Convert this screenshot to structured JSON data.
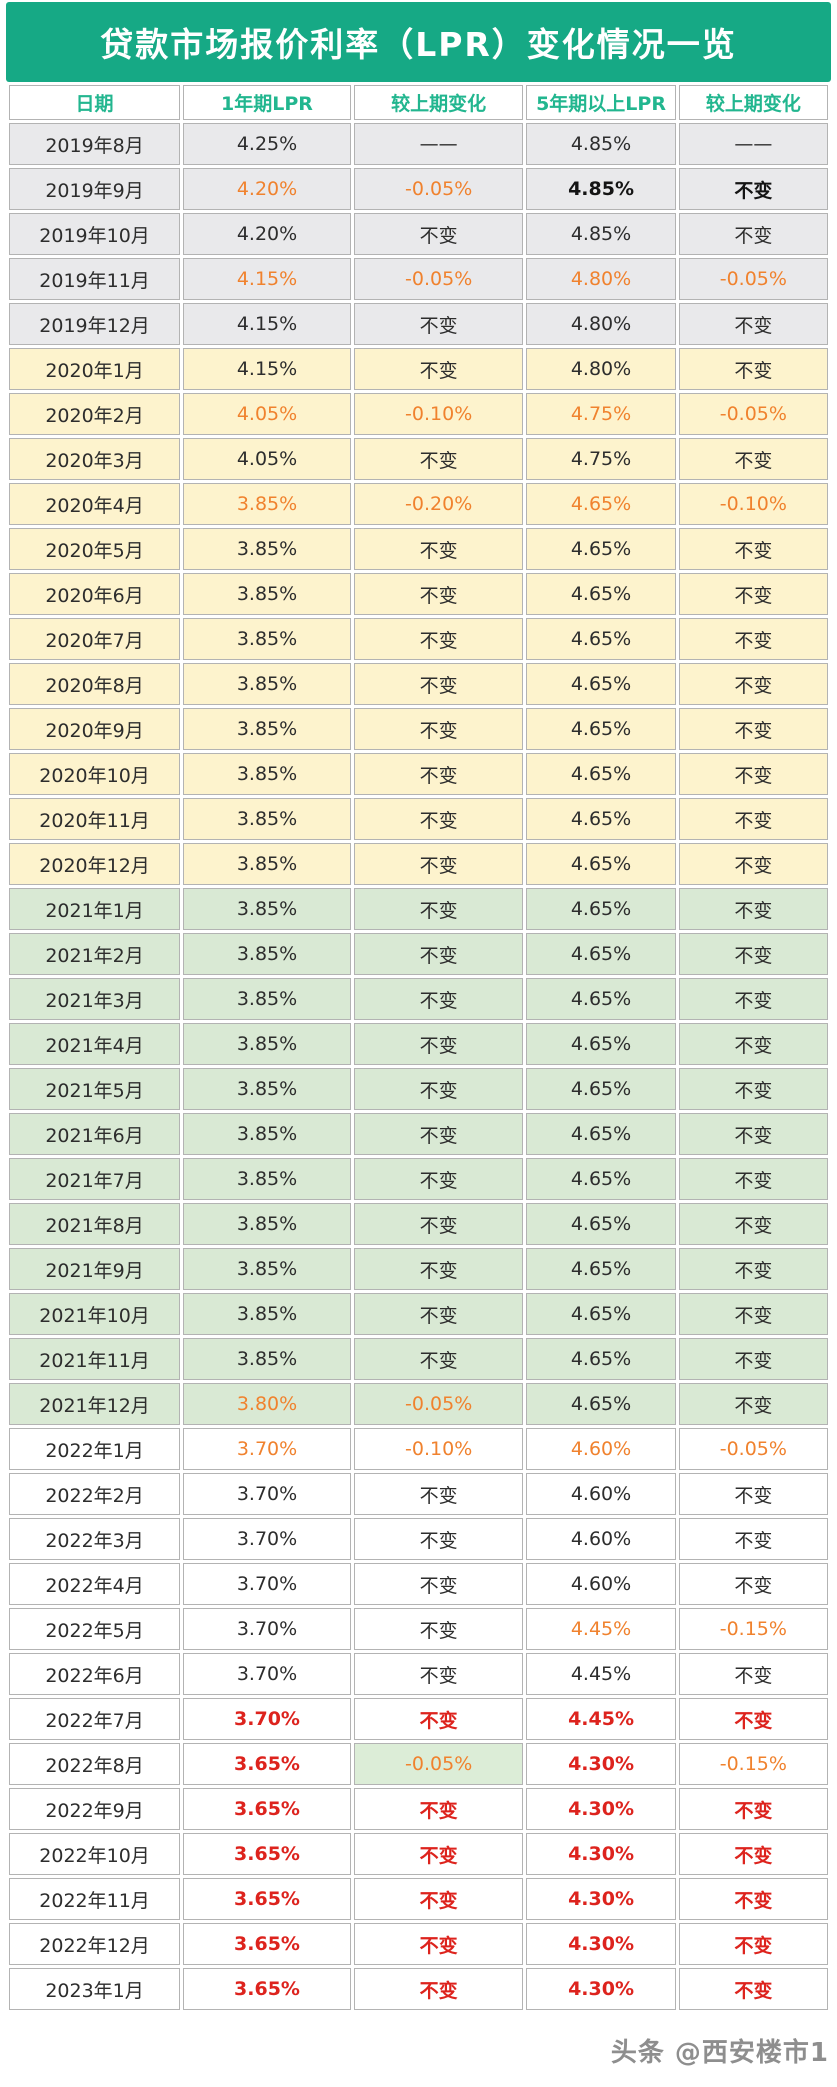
{
  "title": "贷款市场报价利率（LPR）变化情况一览",
  "header": {
    "columns": [
      "日期",
      "1年期LPR",
      "较上期变化",
      "5年期以上LPR",
      "较上期变化"
    ]
  },
  "watermark": "头条 @西安楼市1",
  "colors": {
    "title_bg": "#16a985",
    "title_text": "#ffffff",
    "column_header_text": "#22b68f",
    "row_grey": "#e9e9eb",
    "row_yellow": "#fdf3cd",
    "row_green": "#d9e9d4",
    "row_white": "#ffffff",
    "highlight_cell_green": "#dcedd7",
    "text_black": "#2d2d2d",
    "text_orange": "#f0822e",
    "text_red": "#dd231d",
    "cell_border": "#b3b3b3",
    "watermark_text": "#8e8e8e"
  },
  "legend": {
    "color_codes": {
      "k": "black-normal",
      "b": "black-bold",
      "o": "orange",
      "r": "red-bold"
    }
  },
  "rows": [
    {
      "date": "2019年8月",
      "bg": "grey",
      "cells": [
        [
          "4.25%",
          "k"
        ],
        [
          "——",
          "k"
        ],
        [
          "4.85%",
          "k"
        ],
        [
          "——",
          "k"
        ]
      ]
    },
    {
      "date": "2019年9月",
      "bg": "grey",
      "cells": [
        [
          "4.20%",
          "o"
        ],
        [
          "-0.05%",
          "o"
        ],
        [
          "4.85%",
          "b"
        ],
        [
          "不变",
          "b"
        ]
      ]
    },
    {
      "date": "2019年10月",
      "bg": "grey",
      "cells": [
        [
          "4.20%",
          "k"
        ],
        [
          "不变",
          "k"
        ],
        [
          "4.85%",
          "k"
        ],
        [
          "不变",
          "k"
        ]
      ]
    },
    {
      "date": "2019年11月",
      "bg": "grey",
      "cells": [
        [
          "4.15%",
          "o"
        ],
        [
          "-0.05%",
          "o"
        ],
        [
          "4.80%",
          "o"
        ],
        [
          "-0.05%",
          "o"
        ]
      ]
    },
    {
      "date": "2019年12月",
      "bg": "grey",
      "cells": [
        [
          "4.15%",
          "k"
        ],
        [
          "不变",
          "k"
        ],
        [
          "4.80%",
          "k"
        ],
        [
          "不变",
          "k"
        ]
      ]
    },
    {
      "date": "2020年1月",
      "bg": "yellow",
      "cells": [
        [
          "4.15%",
          "k"
        ],
        [
          "不变",
          "k"
        ],
        [
          "4.80%",
          "k"
        ],
        [
          "不变",
          "k"
        ]
      ]
    },
    {
      "date": "2020年2月",
      "bg": "yellow",
      "cells": [
        [
          "4.05%",
          "o"
        ],
        [
          "-0.10%",
          "o"
        ],
        [
          "4.75%",
          "o"
        ],
        [
          "-0.05%",
          "o"
        ]
      ]
    },
    {
      "date": "2020年3月",
      "bg": "yellow",
      "cells": [
        [
          "4.05%",
          "k"
        ],
        [
          "不变",
          "k"
        ],
        [
          "4.75%",
          "k"
        ],
        [
          "不变",
          "k"
        ]
      ]
    },
    {
      "date": "2020年4月",
      "bg": "yellow",
      "cells": [
        [
          "3.85%",
          "o"
        ],
        [
          "-0.20%",
          "o"
        ],
        [
          "4.65%",
          "o"
        ],
        [
          "-0.10%",
          "o"
        ]
      ]
    },
    {
      "date": "2020年5月",
      "bg": "yellow",
      "cells": [
        [
          "3.85%",
          "k"
        ],
        [
          "不变",
          "k"
        ],
        [
          "4.65%",
          "k"
        ],
        [
          "不变",
          "k"
        ]
      ]
    },
    {
      "date": "2020年6月",
      "bg": "yellow",
      "cells": [
        [
          "3.85%",
          "k"
        ],
        [
          "不变",
          "k"
        ],
        [
          "4.65%",
          "k"
        ],
        [
          "不变",
          "k"
        ]
      ]
    },
    {
      "date": "2020年7月",
      "bg": "yellow",
      "cells": [
        [
          "3.85%",
          "k"
        ],
        [
          "不变",
          "k"
        ],
        [
          "4.65%",
          "k"
        ],
        [
          "不变",
          "k"
        ]
      ]
    },
    {
      "date": "2020年8月",
      "bg": "yellow",
      "cells": [
        [
          "3.85%",
          "k"
        ],
        [
          "不变",
          "k"
        ],
        [
          "4.65%",
          "k"
        ],
        [
          "不变",
          "k"
        ]
      ]
    },
    {
      "date": "2020年9月",
      "bg": "yellow",
      "cells": [
        [
          "3.85%",
          "k"
        ],
        [
          "不变",
          "k"
        ],
        [
          "4.65%",
          "k"
        ],
        [
          "不变",
          "k"
        ]
      ]
    },
    {
      "date": "2020年10月",
      "bg": "yellow",
      "cells": [
        [
          "3.85%",
          "k"
        ],
        [
          "不变",
          "k"
        ],
        [
          "4.65%",
          "k"
        ],
        [
          "不变",
          "k"
        ]
      ]
    },
    {
      "date": "2020年11月",
      "bg": "yellow",
      "cells": [
        [
          "3.85%",
          "k"
        ],
        [
          "不变",
          "k"
        ],
        [
          "4.65%",
          "k"
        ],
        [
          "不变",
          "k"
        ]
      ]
    },
    {
      "date": "2020年12月",
      "bg": "yellow",
      "cells": [
        [
          "3.85%",
          "k"
        ],
        [
          "不变",
          "k"
        ],
        [
          "4.65%",
          "k"
        ],
        [
          "不变",
          "k"
        ]
      ]
    },
    {
      "date": "2021年1月",
      "bg": "green",
      "cells": [
        [
          "3.85%",
          "k"
        ],
        [
          "不变",
          "k"
        ],
        [
          "4.65%",
          "k"
        ],
        [
          "不变",
          "k"
        ]
      ]
    },
    {
      "date": "2021年2月",
      "bg": "green",
      "cells": [
        [
          "3.85%",
          "k"
        ],
        [
          "不变",
          "k"
        ],
        [
          "4.65%",
          "k"
        ],
        [
          "不变",
          "k"
        ]
      ]
    },
    {
      "date": "2021年3月",
      "bg": "green",
      "cells": [
        [
          "3.85%",
          "k"
        ],
        [
          "不变",
          "k"
        ],
        [
          "4.65%",
          "k"
        ],
        [
          "不变",
          "k"
        ]
      ]
    },
    {
      "date": "2021年4月",
      "bg": "green",
      "cells": [
        [
          "3.85%",
          "k"
        ],
        [
          "不变",
          "k"
        ],
        [
          "4.65%",
          "k"
        ],
        [
          "不变",
          "k"
        ]
      ]
    },
    {
      "date": "2021年5月",
      "bg": "green",
      "cells": [
        [
          "3.85%",
          "k"
        ],
        [
          "不变",
          "k"
        ],
        [
          "4.65%",
          "k"
        ],
        [
          "不变",
          "k"
        ]
      ]
    },
    {
      "date": "2021年6月",
      "bg": "green",
      "cells": [
        [
          "3.85%",
          "k"
        ],
        [
          "不变",
          "k"
        ],
        [
          "4.65%",
          "k"
        ],
        [
          "不变",
          "k"
        ]
      ]
    },
    {
      "date": "2021年7月",
      "bg": "green",
      "cells": [
        [
          "3.85%",
          "k"
        ],
        [
          "不变",
          "k"
        ],
        [
          "4.65%",
          "k"
        ],
        [
          "不变",
          "k"
        ]
      ]
    },
    {
      "date": "2021年8月",
      "bg": "green",
      "cells": [
        [
          "3.85%",
          "k"
        ],
        [
          "不变",
          "k"
        ],
        [
          "4.65%",
          "k"
        ],
        [
          "不变",
          "k"
        ]
      ]
    },
    {
      "date": "2021年9月",
      "bg": "green",
      "cells": [
        [
          "3.85%",
          "k"
        ],
        [
          "不变",
          "k"
        ],
        [
          "4.65%",
          "k"
        ],
        [
          "不变",
          "k"
        ]
      ]
    },
    {
      "date": "2021年10月",
      "bg": "green",
      "cells": [
        [
          "3.85%",
          "k"
        ],
        [
          "不变",
          "k"
        ],
        [
          "4.65%",
          "k"
        ],
        [
          "不变",
          "k"
        ]
      ]
    },
    {
      "date": "2021年11月",
      "bg": "green",
      "cells": [
        [
          "3.85%",
          "k"
        ],
        [
          "不变",
          "k"
        ],
        [
          "4.65%",
          "k"
        ],
        [
          "不变",
          "k"
        ]
      ]
    },
    {
      "date": "2021年12月",
      "bg": "green",
      "cells": [
        [
          "3.80%",
          "o"
        ],
        [
          "-0.05%",
          "o"
        ],
        [
          "4.65%",
          "k"
        ],
        [
          "不变",
          "k"
        ]
      ]
    },
    {
      "date": "2022年1月",
      "bg": "white",
      "cells": [
        [
          "3.70%",
          "o"
        ],
        [
          "-0.10%",
          "o"
        ],
        [
          "4.60%",
          "o"
        ],
        [
          "-0.05%",
          "o"
        ]
      ]
    },
    {
      "date": "2022年2月",
      "bg": "white",
      "cells": [
        [
          "3.70%",
          "k"
        ],
        [
          "不变",
          "k"
        ],
        [
          "4.60%",
          "k"
        ],
        [
          "不变",
          "k"
        ]
      ]
    },
    {
      "date": "2022年3月",
      "bg": "white",
      "cells": [
        [
          "3.70%",
          "k"
        ],
        [
          "不变",
          "k"
        ],
        [
          "4.60%",
          "k"
        ],
        [
          "不变",
          "k"
        ]
      ]
    },
    {
      "date": "2022年4月",
      "bg": "white",
      "cells": [
        [
          "3.70%",
          "k"
        ],
        [
          "不变",
          "k"
        ],
        [
          "4.60%",
          "k"
        ],
        [
          "不变",
          "k"
        ]
      ]
    },
    {
      "date": "2022年5月",
      "bg": "white",
      "cells": [
        [
          "3.70%",
          "k"
        ],
        [
          "不变",
          "k"
        ],
        [
          "4.45%",
          "o"
        ],
        [
          "-0.15%",
          "o"
        ]
      ]
    },
    {
      "date": "2022年6月",
      "bg": "white",
      "cells": [
        [
          "3.70%",
          "k"
        ],
        [
          "不变",
          "k"
        ],
        [
          "4.45%",
          "k"
        ],
        [
          "不变",
          "k"
        ]
      ]
    },
    {
      "date": "2022年7月",
      "bg": "white",
      "cells": [
        [
          "3.70%",
          "r"
        ],
        [
          "不变",
          "r"
        ],
        [
          "4.45%",
          "r"
        ],
        [
          "不变",
          "r"
        ]
      ]
    },
    {
      "date": "2022年8月",
      "bg": "white",
      "cells": [
        [
          "3.65%",
          "r"
        ],
        [
          "-0.05%",
          "o",
          "green"
        ],
        [
          "4.30%",
          "r"
        ],
        [
          "-0.15%",
          "o"
        ]
      ]
    },
    {
      "date": "2022年9月",
      "bg": "white",
      "cells": [
        [
          "3.65%",
          "r"
        ],
        [
          "不变",
          "r"
        ],
        [
          "4.30%",
          "r"
        ],
        [
          "不变",
          "r"
        ]
      ]
    },
    {
      "date": "2022年10月",
      "bg": "white",
      "cells": [
        [
          "3.65%",
          "r"
        ],
        [
          "不变",
          "r"
        ],
        [
          "4.30%",
          "r"
        ],
        [
          "不变",
          "r"
        ]
      ]
    },
    {
      "date": "2022年11月",
      "bg": "white",
      "cells": [
        [
          "3.65%",
          "r"
        ],
        [
          "不变",
          "r"
        ],
        [
          "4.30%",
          "r"
        ],
        [
          "不变",
          "r"
        ]
      ]
    },
    {
      "date": "2022年12月",
      "bg": "white",
      "cells": [
        [
          "3.65%",
          "r"
        ],
        [
          "不变",
          "r"
        ],
        [
          "4.30%",
          "r"
        ],
        [
          "不变",
          "r"
        ]
      ]
    },
    {
      "date": "2023年1月",
      "bg": "white",
      "cells": [
        [
          "3.65%",
          "r"
        ],
        [
          "不变",
          "r"
        ],
        [
          "4.30%",
          "r"
        ],
        [
          "不变",
          "r"
        ]
      ]
    }
  ]
}
